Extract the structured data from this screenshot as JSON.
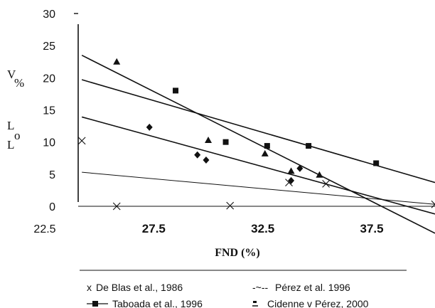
{
  "chart_data": {
    "type": "scatter",
    "xlabel": "FND (%)",
    "ylabel_parts": [
      "V",
      "%",
      "L",
      "o",
      "L"
    ],
    "xlim": [
      22.5,
      40.4
    ],
    "ylim": [
      0,
      30
    ],
    "x_ticks": [
      "22.5",
      "27.5",
      "32.5",
      "37.5"
    ],
    "y_ticks": [
      "0",
      "5",
      "10",
      "15",
      "20",
      "25",
      "30"
    ],
    "series": [
      {
        "name": "De Blas et al., 1986",
        "marker": "x",
        "legend_symbol": "x",
        "points": [
          [
            24.2,
            10.2
          ],
          [
            25.8,
            0.0
          ],
          [
            31.0,
            0.1
          ],
          [
            33.7,
            3.7
          ],
          [
            35.4,
            3.5
          ],
          [
            40.4,
            0.3
          ]
        ],
        "trend": [
          [
            24.2,
            5.3
          ],
          [
            40.4,
            0.3
          ]
        ],
        "trend_style": "thin"
      },
      {
        "name": "Pérez et al. 1996",
        "marker": "triangle",
        "legend_symbol": "-~--",
        "points": [
          [
            25.8,
            22.5
          ],
          [
            30.0,
            10.3
          ],
          [
            32.6,
            8.2
          ],
          [
            33.8,
            5.5
          ],
          [
            35.1,
            4.9
          ]
        ],
        "trend": [
          [
            24.2,
            23.5
          ],
          [
            40.4,
            -4.2
          ]
        ],
        "trend_style": "thick"
      },
      {
        "name": "Taboada et al., 1996",
        "marker": "square",
        "legend_symbol": "line-square",
        "points": [
          [
            28.5,
            18.0
          ],
          [
            30.8,
            10.0
          ],
          [
            32.7,
            9.4
          ],
          [
            34.6,
            9.4
          ],
          [
            37.7,
            6.7
          ]
        ],
        "trend": [
          [
            24.2,
            19.7
          ],
          [
            40.4,
            3.7
          ]
        ],
        "trend_style": "thick"
      },
      {
        "name_prefix": "Cidenne v",
        "name_underlined": "Pérez, 2000",
        "marker": "diamond",
        "legend_symbol": "underscore-dot",
        "points": [
          [
            27.3,
            12.3
          ],
          [
            29.5,
            8.0
          ],
          [
            29.9,
            7.2
          ],
          [
            33.8,
            4.0
          ],
          [
            34.2,
            5.9
          ]
        ],
        "trend": [
          [
            24.2,
            13.9
          ],
          [
            40.4,
            -1.2
          ]
        ],
        "trend_style": "thick"
      }
    ],
    "legend_position": "bottom"
  }
}
